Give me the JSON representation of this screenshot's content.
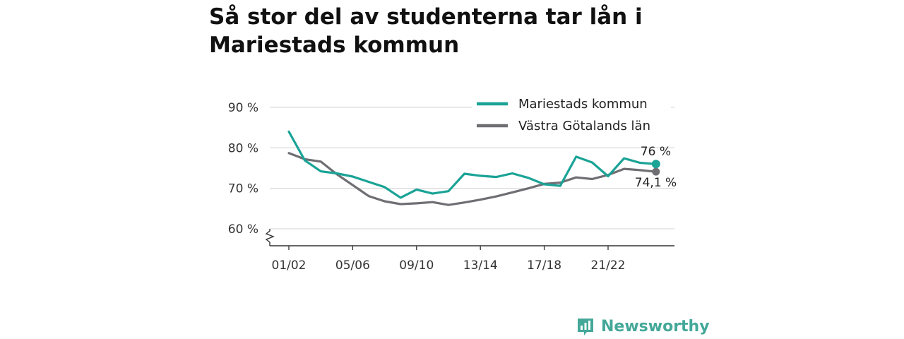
{
  "title": "Så stor del av studenterna tar lån i Mariestads kommun",
  "brand": {
    "name": "Newsworthy",
    "icon": "newsworthy-logo-icon",
    "color": "#44a899"
  },
  "chart_data": {
    "type": "line",
    "title": "Så stor del av studenterna tar lån i Mariestads kommun",
    "xlabel": "",
    "ylabel": "",
    "categories": [
      "01/02",
      "02/03",
      "03/04",
      "04/05",
      "05/06",
      "06/07",
      "07/08",
      "08/09",
      "09/10",
      "10/11",
      "11/12",
      "12/13",
      "13/14",
      "14/15",
      "15/16",
      "16/17",
      "17/18",
      "18/19",
      "19/20",
      "20/21",
      "21/22",
      "22/23",
      "23/24",
      "24/25"
    ],
    "x_tick_labels": [
      "01/02",
      "05/06",
      "09/10",
      "13/14",
      "17/18",
      "21/22"
    ],
    "y_ticks": [
      60,
      70,
      80,
      90
    ],
    "y_tick_labels": [
      "60 %",
      "70 %",
      "80 %",
      "90 %"
    ],
    "ylim": [
      56,
      90
    ],
    "y_axis_break": true,
    "grid": true,
    "legend_position": "top-right",
    "series": [
      {
        "name": "Mariestads kommun",
        "color": "#1aa396",
        "values": [
          84.0,
          76.9,
          74.2,
          73.7,
          72.9,
          71.6,
          70.3,
          67.7,
          69.7,
          68.7,
          69.3,
          73.6,
          73.1,
          72.8,
          73.7,
          72.6,
          71.0,
          70.6,
          77.8,
          76.4,
          73.0,
          77.4,
          76.3,
          76.0
        ],
        "end_label": "76 %"
      },
      {
        "name": "Västra Götalands län",
        "color": "#6f6e73",
        "values": [
          78.7,
          77.2,
          76.6,
          73.5,
          70.8,
          68.1,
          66.8,
          66.1,
          66.3,
          66.6,
          65.9,
          66.5,
          67.2,
          68.0,
          69.0,
          70.0,
          71.1,
          71.4,
          72.7,
          72.3,
          73.3,
          74.8,
          74.5,
          74.1
        ],
        "end_label": "74,1 %"
      }
    ]
  }
}
